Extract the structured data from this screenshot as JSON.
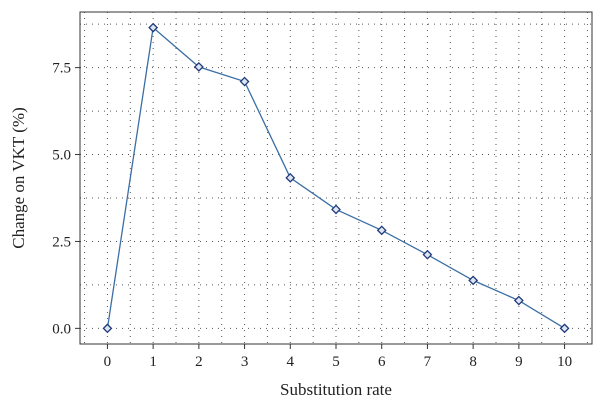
{
  "chart_data": {
    "type": "line",
    "xlabel": "Substitution rate",
    "ylabel": "Change on VKT (%)",
    "x": [
      0,
      1,
      2,
      3,
      4,
      5,
      6,
      7,
      8,
      9,
      10
    ],
    "series": [
      {
        "values": [
          0.0,
          8.65,
          7.52,
          7.1,
          4.33,
          3.42,
          2.82,
          2.12,
          1.38,
          0.8,
          0.0
        ]
      }
    ],
    "xlim": [
      -0.6,
      10.6
    ],
    "ylim": [
      -0.45,
      9.1
    ],
    "xticks": [
      0,
      1,
      2,
      3,
      4,
      5,
      6,
      7,
      8,
      9,
      10
    ],
    "xtick_labels": [
      "0",
      "1",
      "2",
      "3",
      "4",
      "5",
      "6",
      "7",
      "8",
      "9",
      "10"
    ],
    "yticks": [
      0,
      2.5,
      5,
      7.5
    ],
    "ytick_labels": [
      "0.0",
      "2.5",
      "5.0",
      "7.5"
    ],
    "grid": "dotted",
    "line_color": "#3a6ea5",
    "marker": "diamond",
    "marker_color": "#1f3a7a"
  }
}
